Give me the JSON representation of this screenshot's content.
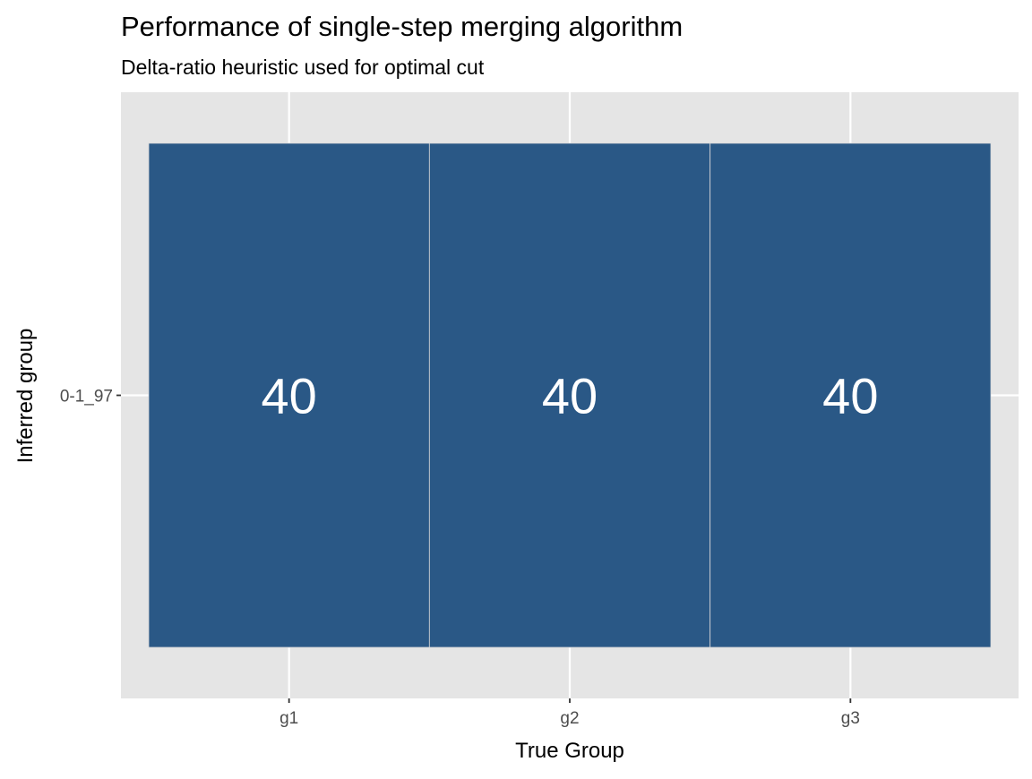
{
  "chart_data": {
    "type": "heatmap",
    "title": "Performance of single-step merging algorithm",
    "subtitle": "Delta-ratio heuristic used for optimal cut",
    "xlabel": "True Group",
    "ylabel": "Inferred group",
    "x_categories": [
      "g1",
      "g2",
      "g3"
    ],
    "y_categories": [
      "0-1_97"
    ],
    "cells": [
      {
        "x": "g1",
        "y": "0-1_97",
        "value": 40
      },
      {
        "x": "g2",
        "y": "0-1_97",
        "value": 40
      },
      {
        "x": "g3",
        "y": "0-1_97",
        "value": 40
      }
    ],
    "grid": true,
    "legend": "none",
    "colors": {
      "panel_background": "#e5e5e5",
      "grid_line": "#ffffff",
      "tile_fill": "#2a5886",
      "tile_border": "#d9d9d9",
      "tile_label": "#ffffff",
      "axis_text": "#4d4d4d",
      "title_text": "#000000"
    }
  }
}
